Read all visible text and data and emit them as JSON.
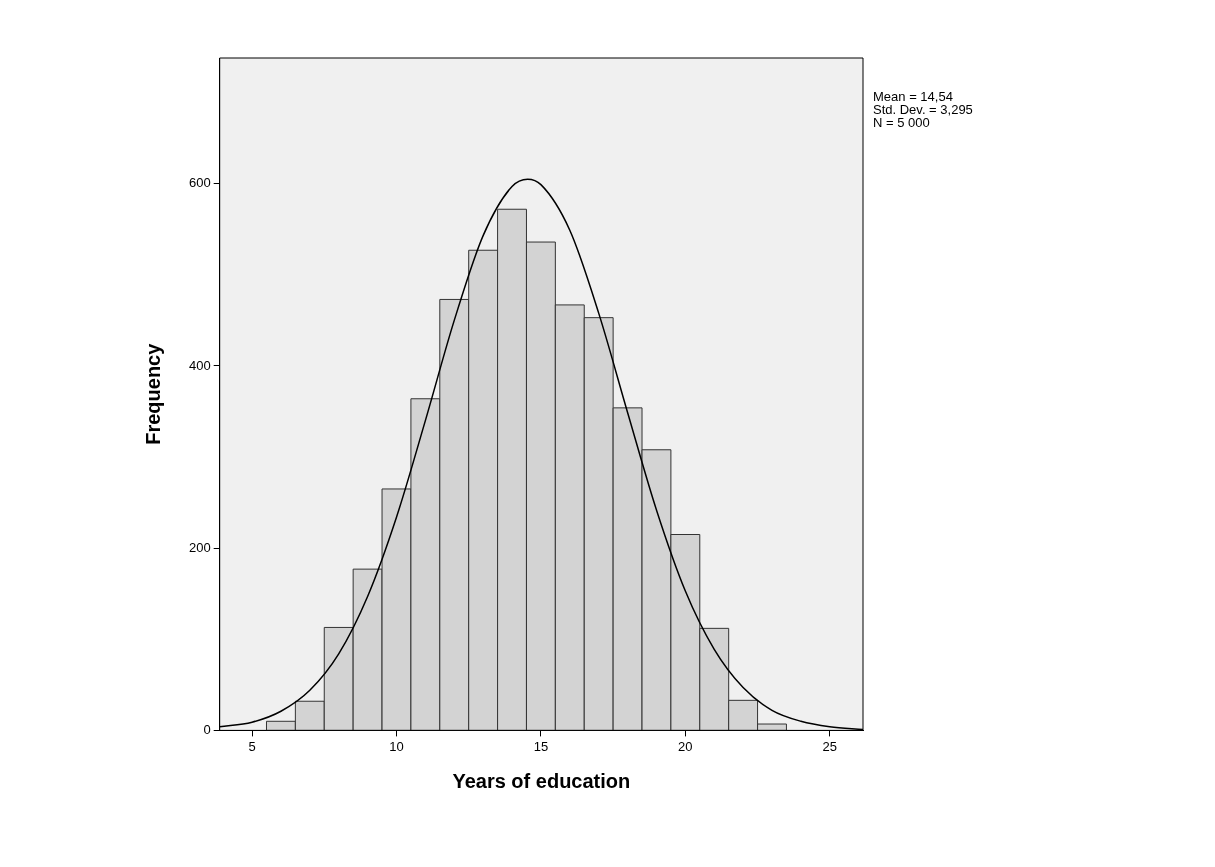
{
  "chart_data": {
    "type": "histogram",
    "xlabel": "Years of education",
    "ylabel": "Frequency",
    "annotations": [
      "Mean = 14,54",
      "Std. Dev. = 3,295",
      "N = 5 000"
    ],
    "xlim": [
      3.88,
      26.15
    ],
    "xticks": [
      5,
      10,
      15,
      20,
      25
    ],
    "ylim": [
      0,
      738
    ],
    "yticks": [
      0,
      200,
      400,
      600
    ],
    "grid": false,
    "legend": false,
    "series": [
      {
        "color": "#d3d3d3",
        "bins": [
          5.5,
          6.5,
          7.5,
          8.5,
          9.5,
          10.5,
          11.5,
          12.5,
          13.5,
          14.5,
          15.5,
          16.5,
          17.5,
          18.5,
          19.5,
          20.5,
          21.5,
          22.5,
          23.5
        ],
        "values": [
          10,
          32,
          113,
          177,
          265,
          364,
          473,
          527,
          572,
          536,
          467,
          453,
          354,
          308,
          215,
          112,
          33,
          7
        ]
      },
      {
        "type": "line",
        "color": "#000000",
        "x": [
          3.88,
          5,
          6,
          7,
          8,
          9,
          10,
          11,
          12,
          13,
          14,
          14.54,
          15,
          16,
          17,
          18,
          19,
          20,
          21,
          22,
          23,
          24,
          25,
          26.15
        ],
        "values": [
          4,
          9,
          21,
          44,
          84,
          147,
          234,
          340,
          450,
          543,
          597,
          605,
          599,
          549,
          458,
          349,
          242,
          153,
          89,
          47,
          22,
          10,
          4,
          1
        ]
      }
    ]
  }
}
